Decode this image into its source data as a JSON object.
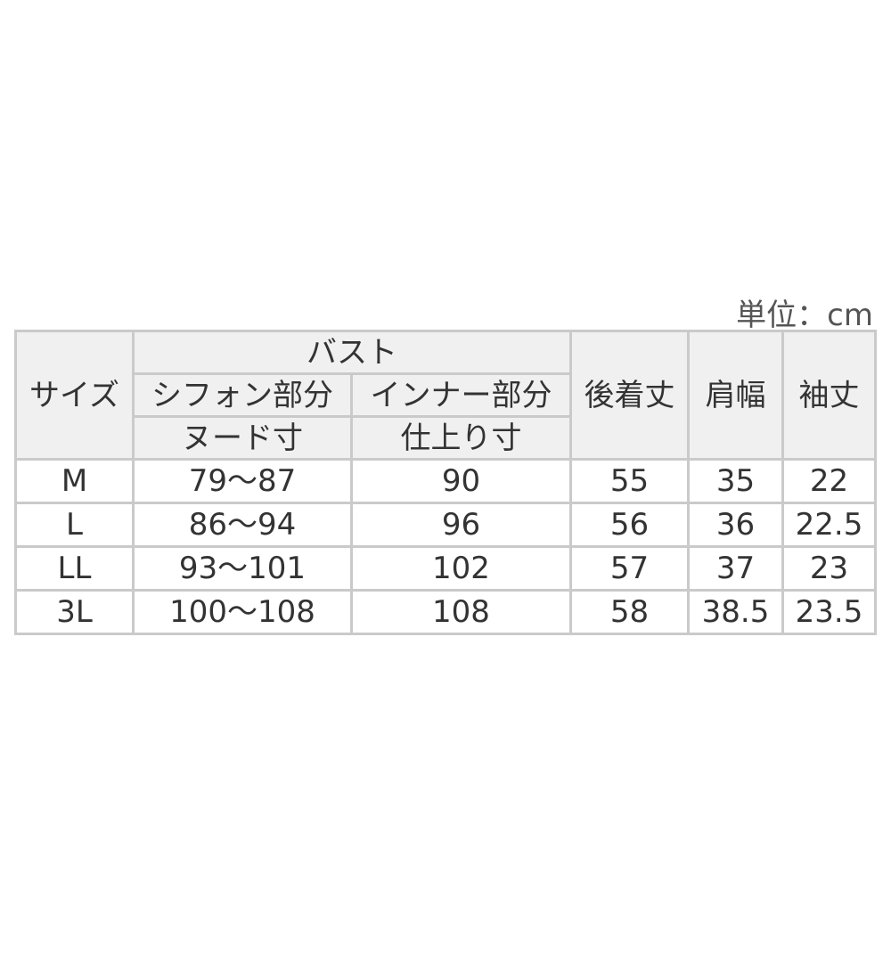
{
  "unit_label": "単位：cm",
  "header": {
    "size": "サイズ",
    "bust": "バスト",
    "chiffon": "シフォン部分",
    "chiffon_sub": "ヌード寸",
    "inner": "インナー部分",
    "inner_sub": "仕上り寸",
    "back_length": "後着丈",
    "shoulder": "肩幅",
    "sleeve": "袖丈"
  },
  "rows": [
    {
      "size": "M",
      "chiffon": "79〜87",
      "inner": "90",
      "back_length": "55",
      "shoulder": "35",
      "sleeve": "22"
    },
    {
      "size": "L",
      "chiffon": "86〜94",
      "inner": "96",
      "back_length": "56",
      "shoulder": "36",
      "sleeve": "22.5"
    },
    {
      "size": "LL",
      "chiffon": "93〜101",
      "inner": "102",
      "back_length": "57",
      "shoulder": "37",
      "sleeve": "23"
    },
    {
      "size": "3L",
      "chiffon": "100〜108",
      "inner": "108",
      "back_length": "58",
      "shoulder": "38.5",
      "sleeve": "23.5"
    }
  ]
}
